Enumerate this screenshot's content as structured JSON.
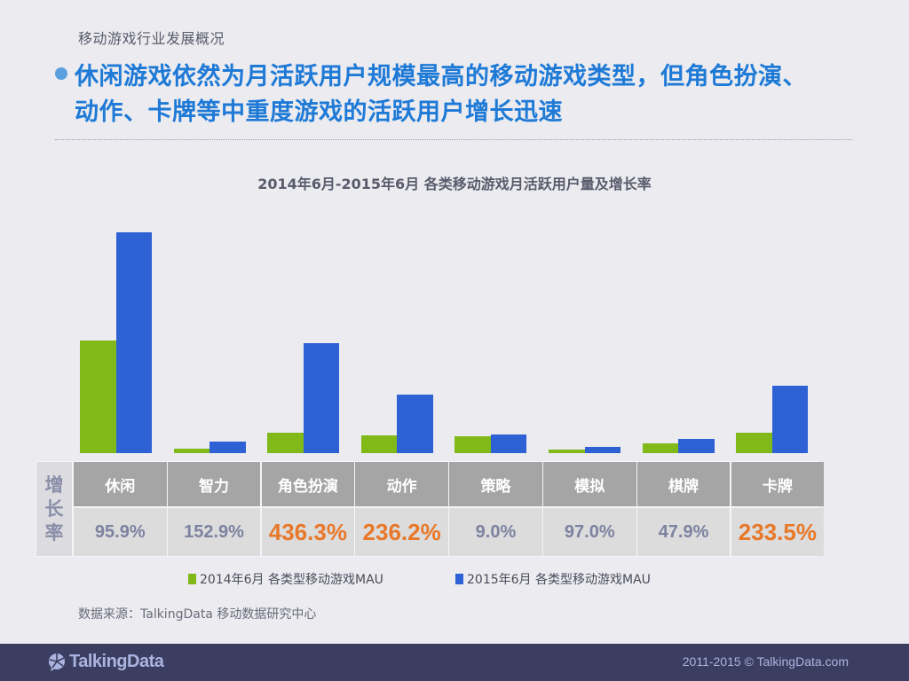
{
  "header": {
    "section_label": "移动游戏行业发展概况",
    "headline_line1": "休闲游戏依然为月活跃用户规模最高的移动游戏类型，但角色扮演、",
    "headline_line2": "动作、卡牌等中重度游戏的活跃用户增长迅速"
  },
  "colors": {
    "series_2014": "#80b918",
    "series_2015": "#2e62d4",
    "headline": "#1e7ad6",
    "highlight_rate": "#e8782a",
    "normal_rate": "#7d82a0",
    "footer_bg": "#3b3e60"
  },
  "chart_data": {
    "type": "bar",
    "title": "2014年6月-2015年6月 各类移动游戏月活跃用户量及增长率",
    "categories": [
      "休闲",
      "智力",
      "角色扮演",
      "动作",
      "策略",
      "模拟",
      "棋牌",
      "卡牌"
    ],
    "series": [
      {
        "name": "2014年6月 各类型移动游戏MAU",
        "values": [
          127,
          5,
          23,
          20,
          19,
          4,
          11,
          23
        ]
      },
      {
        "name": "2015年6月 各类型移动游戏MAU",
        "values": [
          249,
          13,
          124,
          66,
          21,
          7,
          16,
          76
        ]
      }
    ],
    "growth_rates": [
      "95.9%",
      "152.9%",
      "436.3%",
      "236.2%",
      "9.0%",
      "97.0%",
      "47.9%",
      "233.5%"
    ],
    "highlighted": [
      false,
      false,
      true,
      true,
      false,
      false,
      false,
      true
    ],
    "xlabel": "",
    "ylabel": "",
    "y_axis_shown": false,
    "values_note": "relative bar heights (no axis shown)",
    "grid": false,
    "legend_position": "bottom"
  },
  "table": {
    "row_header": [
      "增",
      "长",
      "率"
    ]
  },
  "legend": {
    "item0": "2014年6月 各类型移动游戏MAU",
    "item1": "2015年6月 各类型移动游戏MAU"
  },
  "source": "数据来源：TalkingData 移动数据研究中心",
  "footer": {
    "logo_text": "TalkingData",
    "copyright": "2011-2015 © TalkingData.com"
  }
}
